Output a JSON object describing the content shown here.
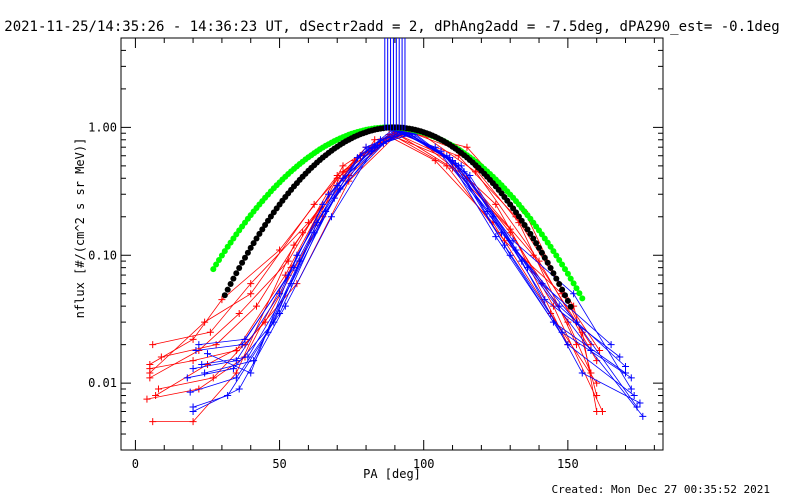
{
  "chart_data": {
    "type": "line",
    "title": "2021-11-25/14:35:26 - 14:36:23 UT, dSectr2add = 2, dPhAng2add = -7.5deg, dPA290_est= -0.1deg",
    "xlabel": "PA [deg]",
    "ylabel": "nflux [#/(cm^2 s sr MeV)]",
    "footer": "Created: Mon Dec 27 00:35:52 2021",
    "y_scale": "log",
    "xlim": [
      -5,
      183
    ],
    "ylim": [
      0.003,
      5.0
    ],
    "x_ticks": [
      0,
      50,
      100,
      150
    ],
    "x_tick_labels": [
      "0",
      "50",
      "100",
      "150"
    ],
    "y_ticks": [
      0.01,
      0.1,
      1.0
    ],
    "y_tick_labels": [
      "0.01",
      "0.10",
      "1.00"
    ],
    "colors": {
      "red": "#ff0000",
      "blue": "#0000ff",
      "green": "#00ff00",
      "black": "#000000"
    },
    "series": [
      {
        "color": "red",
        "marker": "plus",
        "x": [
          5,
          20,
          30,
          50,
          70,
          88,
          110,
          130,
          150,
          158
        ],
        "y": [
          0.014,
          0.022,
          0.045,
          0.11,
          0.42,
          0.88,
          0.55,
          0.15,
          0.03,
          0.012
        ]
      },
      {
        "color": "red",
        "marker": "plus",
        "x": [
          5,
          22,
          36,
          53,
          72,
          90,
          112,
          132,
          152,
          160
        ],
        "y": [
          0.011,
          0.018,
          0.035,
          0.09,
          0.5,
          0.92,
          0.6,
          0.2,
          0.04,
          0.008
        ]
      },
      {
        "color": "red",
        "marker": "plus",
        "x": [
          6,
          26,
          40,
          60,
          78,
          92,
          115,
          135,
          155,
          160
        ],
        "y": [
          0.02,
          0.025,
          0.06,
          0.18,
          0.6,
          0.95,
          0.7,
          0.22,
          0.025,
          0.006
        ]
      },
      {
        "color": "red",
        "marker": "plus",
        "x": [
          7,
          25,
          38,
          56,
          74,
          90,
          108,
          128,
          148,
          161
        ],
        "y": [
          0.008,
          0.014,
          0.02,
          0.06,
          0.38,
          0.85,
          0.5,
          0.13,
          0.05,
          0.018
        ]
      },
      {
        "color": "red",
        "marker": "plus",
        "x": [
          5,
          24,
          40,
          62,
          80,
          95,
          115,
          138,
          158
        ],
        "y": [
          0.012,
          0.03,
          0.05,
          0.25,
          0.7,
          0.9,
          0.4,
          0.1,
          0.02
        ]
      },
      {
        "color": "red",
        "marker": "plus",
        "x": [
          8,
          27,
          45,
          65,
          83,
          98,
          118,
          140,
          160
        ],
        "y": [
          0.009,
          0.011,
          0.03,
          0.2,
          0.8,
          0.93,
          0.45,
          0.09,
          0.015
        ]
      },
      {
        "color": "red",
        "marker": "plus",
        "x": [
          6,
          20,
          35,
          55,
          76,
          93,
          113,
          133,
          153
        ],
        "y": [
          0.005,
          0.005,
          0.012,
          0.12,
          0.55,
          0.96,
          0.65,
          0.18,
          0.02
        ]
      },
      {
        "color": "red",
        "marker": "plus",
        "x": [
          9,
          28,
          42,
          58,
          74,
          90,
          107,
          125,
          145,
          162
        ],
        "y": [
          0.016,
          0.02,
          0.04,
          0.15,
          0.42,
          0.9,
          0.6,
          0.25,
          0.04,
          0.006
        ]
      },
      {
        "color": "red",
        "marker": "plus",
        "x": [
          5,
          20,
          35,
          52,
          70,
          88,
          104,
          124,
          144,
          160
        ],
        "y": [
          0.013,
          0.015,
          0.018,
          0.07,
          0.4,
          0.85,
          0.55,
          0.18,
          0.035,
          0.01
        ]
      },
      {
        "color": "red",
        "marker": "plus",
        "x": [
          4,
          22,
          38,
          54,
          72,
          91,
          110,
          130,
          150
        ],
        "y": [
          0.0075,
          0.009,
          0.016,
          0.08,
          0.45,
          0.88,
          0.48,
          0.16,
          0.02
        ]
      },
      {
        "color": "blue",
        "marker": "plus",
        "x": [
          20,
          35,
          50,
          65,
          80,
          92,
          108,
          125,
          145,
          170
        ],
        "y": [
          0.013,
          0.015,
          0.05,
          0.25,
          0.7,
          0.92,
          0.6,
          0.14,
          0.03,
          0.012
        ]
      },
      {
        "color": "blue",
        "marker": "plus",
        "x": [
          22,
          38,
          55,
          70,
          85,
          95,
          112,
          130,
          150,
          173
        ],
        "y": [
          0.02,
          0.022,
          0.08,
          0.35,
          0.8,
          0.9,
          0.5,
          0.1,
          0.02,
          0.008
        ]
      },
      {
        "color": "blue",
        "marker": "plus",
        "x": [
          18,
          34,
          48,
          63,
          78,
          90,
          106,
          124,
          142,
          168
        ],
        "y": [
          0.011,
          0.013,
          0.03,
          0.18,
          0.6,
          0.95,
          0.65,
          0.2,
          0.045,
          0.016
        ]
      },
      {
        "color": "blue",
        "marker": "plus",
        "x": [
          25,
          40,
          56,
          72,
          86,
          96,
          114,
          134,
          155,
          175
        ],
        "y": [
          0.017,
          0.012,
          0.1,
          0.4,
          0.75,
          0.9,
          0.45,
          0.09,
          0.012,
          0.007
        ]
      },
      {
        "color": "blue",
        "marker": "plus",
        "x": [
          20,
          36,
          52,
          68,
          82,
          92,
          110,
          128,
          148,
          172
        ],
        "y": [
          0.006,
          0.009,
          0.04,
          0.2,
          0.65,
          0.93,
          0.55,
          0.12,
          0.025,
          0.011
        ]
      },
      {
        "color": "blue",
        "marker": "plus",
        "x": [
          23,
          39,
          54,
          69,
          84,
          94,
          113,
          132,
          153,
          174
        ],
        "y": [
          0.014,
          0.016,
          0.06,
          0.28,
          0.72,
          0.91,
          0.5,
          0.11,
          0.03,
          0.0065
        ]
      },
      {
        "color": "blue",
        "marker": "plus",
        "x": [
          19,
          35,
          50,
          66,
          81,
          91,
          109,
          127,
          147,
          170
        ],
        "y": [
          0.0085,
          0.011,
          0.035,
          0.22,
          0.68,
          0.94,
          0.58,
          0.15,
          0.04,
          0.0135
        ]
      },
      {
        "color": "blue",
        "marker": "plus",
        "x": [
          21,
          37,
          53,
          67,
          83,
          93,
          111,
          131,
          152,
          172
        ],
        "y": [
          0.018,
          0.02,
          0.07,
          0.3,
          0.7,
          0.92,
          0.52,
          0.13,
          0.05,
          0.009
        ]
      },
      {
        "color": "blue",
        "marker": "plus",
        "x": [
          24,
          41,
          57,
          71,
          87,
          97,
          116,
          136,
          158,
          176
        ],
        "y": [
          0.012,
          0.015,
          0.09,
          0.33,
          0.78,
          0.89,
          0.42,
          0.08,
          0.018,
          0.0055
        ]
      },
      {
        "color": "blue",
        "marker": "plus",
        "x": [
          20,
          32,
          46,
          62,
          77,
          89,
          104,
          122,
          141,
          165
        ],
        "y": [
          0.0065,
          0.008,
          0.025,
          0.15,
          0.58,
          0.95,
          0.7,
          0.22,
          0.06,
          0.02
        ]
      }
    ],
    "reference_curves": [
      {
        "color": "green",
        "marker": "dot",
        "fit": "gaussian",
        "center": 88,
        "sigma": 27,
        "xrange": [
          27,
          155
        ],
        "peak": 1.0
      },
      {
        "color": "black",
        "marker": "dot",
        "fit": "gaussian",
        "center": 90,
        "sigma": 24,
        "xrange": [
          31,
          151
        ],
        "peak": 1.0
      }
    ],
    "vertical_lines": {
      "color": "blue",
      "x": [
        86.5,
        87.5,
        88.5,
        89.5,
        90.5,
        91.5,
        92.5,
        93.5
      ],
      "y_from": 0.95,
      "y_to": 5.0
    }
  }
}
